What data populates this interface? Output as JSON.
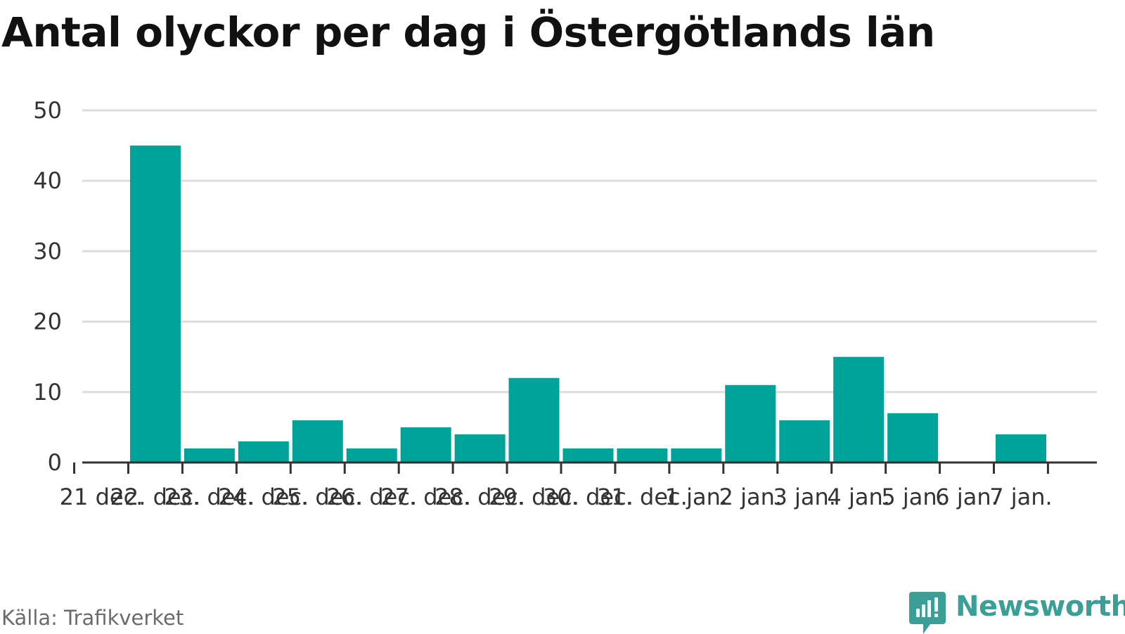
{
  "title": "Antal olyckor per dag i Östergötlands län",
  "source": "Källa: Trafikverket",
  "brand": {
    "name": "Newsworthy",
    "icon": "newsworthy-logo-icon",
    "color": "#3a9f97"
  },
  "colors": {
    "bar": "#00a39a",
    "grid": "#dddddd",
    "axis": "#333333"
  },
  "chart_data": {
    "type": "bar",
    "title": "Antal olyckor per dag i Östergötlands län",
    "xlabel": "",
    "ylabel": "",
    "categories": [
      "21 dec.",
      "22. dec.",
      "23. dec.",
      "24. dec.",
      "25. dec.",
      "26. dec.",
      "27. dec.",
      "28. dec.",
      "29. dec.",
      "30. dec.",
      "31. dec.",
      "1 jan.",
      "2 jan.",
      "3 jan.",
      "4 jan.",
      "5 jan.",
      "6 jan.",
      "7 jan."
    ],
    "values": [
      0,
      45,
      2,
      3,
      6,
      2,
      5,
      4,
      12,
      2,
      2,
      2,
      11,
      6,
      15,
      7,
      0,
      4
    ],
    "ylim": [
      0,
      50
    ],
    "yticks": [
      0,
      10,
      20,
      30,
      40,
      50
    ],
    "grid": true,
    "legend": "none"
  }
}
